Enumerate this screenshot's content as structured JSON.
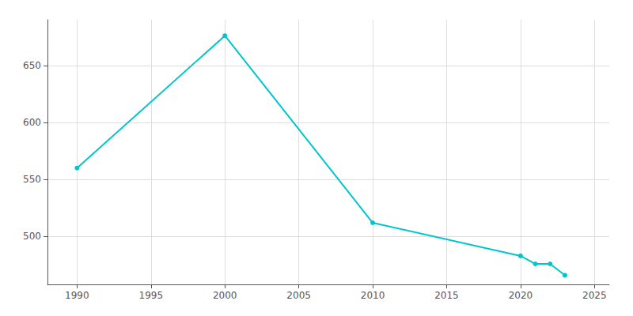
{
  "chart_data": {
    "type": "line",
    "x": [
      1990,
      2000,
      2010,
      2020,
      2021,
      2022,
      2023
    ],
    "values": [
      560,
      676,
      512,
      483,
      476,
      476,
      466
    ],
    "color": "#00c5cd",
    "marker": "circle",
    "xlim": [
      1988,
      2026
    ],
    "ylim": [
      458,
      690
    ],
    "xticks": [
      1990,
      1995,
      2000,
      2005,
      2010,
      2015,
      2020,
      2025
    ],
    "yticks": [
      500,
      550,
      600,
      650
    ],
    "grid": true
  }
}
